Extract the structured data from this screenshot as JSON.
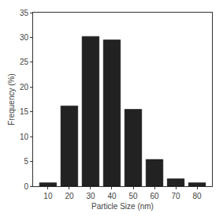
{
  "chart_data": {
    "type": "bar",
    "x_label": "Particle Size (nm)",
    "y_label": "Frequency (%)",
    "x": [
      10,
      20,
      30,
      40,
      50,
      60,
      70,
      80
    ],
    "values": [
      0.7,
      16.2,
      30.2,
      29.5,
      15.5,
      5.4,
      1.5,
      0.7
    ],
    "color": "#222222",
    "xlim": [
      3,
      87
    ],
    "xticks": [
      10,
      20,
      30,
      40,
      50,
      60,
      70,
      80
    ],
    "ylim": [
      0,
      35
    ],
    "yticks": [
      0,
      5,
      10,
      15,
      20,
      25,
      30,
      35
    ],
    "grid": false
  }
}
